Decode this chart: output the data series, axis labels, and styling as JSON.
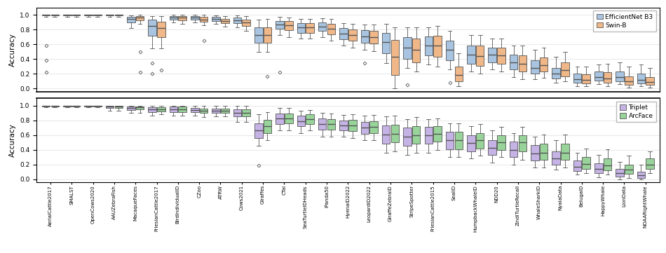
{
  "datasets": [
    "AerialCattle2017",
    "SMALST",
    "OpenCows2020",
    "AAUZebraFish",
    "MacaqueFaces",
    "FriesianCattle2017",
    "BirdIndividualID",
    "CZoo",
    "ATRW",
    "Cows2021",
    "Giraffes",
    "CTai",
    "SeaTurtleIDHeads",
    "IPanda50",
    "HyenaID2022",
    "LeopardID2022",
    "GiraffeZebraID",
    "StripeSpotter",
    "FriesianCattle2015",
    "SealID",
    "HumpbackWhaleID",
    "NDD20",
    "ZindiTurtleRecall",
    "WhaleSharkID",
    "NyalaData",
    "BelugaID",
    "HappyWhale",
    "LionData",
    "NOAARightWhale"
  ],
  "color_effnet": "#a8c4e0",
  "color_swin": "#f0b889",
  "color_triplet": "#c5b3e6",
  "color_arcface": "#98d49a",
  "top_boxes": {
    "effnet": [
      [
        0.975,
        0.99,
        1.0,
        1.0,
        1.0
      ],
      [
        0.975,
        0.99,
        1.0,
        1.0,
        1.0
      ],
      [
        0.975,
        0.99,
        1.0,
        1.0,
        1.0
      ],
      [
        0.975,
        0.99,
        1.0,
        1.0,
        1.0
      ],
      [
        0.82,
        0.9,
        0.95,
        0.975,
        0.99
      ],
      [
        0.55,
        0.72,
        0.85,
        0.94,
        0.985
      ],
      [
        0.9,
        0.94,
        0.965,
        0.985,
        1.0
      ],
      [
        0.9,
        0.94,
        0.965,
        0.985,
        1.0
      ],
      [
        0.88,
        0.92,
        0.95,
        0.975,
        0.99
      ],
      [
        0.83,
        0.89,
        0.93,
        0.965,
        0.99
      ],
      [
        0.5,
        0.62,
        0.73,
        0.83,
        0.94
      ],
      [
        0.73,
        0.81,
        0.87,
        0.92,
        0.97
      ],
      [
        0.68,
        0.76,
        0.83,
        0.89,
        0.95
      ],
      [
        0.7,
        0.78,
        0.84,
        0.9,
        0.955
      ],
      [
        0.58,
        0.67,
        0.75,
        0.82,
        0.89
      ],
      [
        0.53,
        0.62,
        0.71,
        0.79,
        0.87
      ],
      [
        0.35,
        0.48,
        0.63,
        0.76,
        0.88
      ],
      [
        0.28,
        0.4,
        0.56,
        0.7,
        0.83
      ],
      [
        0.33,
        0.45,
        0.58,
        0.71,
        0.83
      ],
      [
        0.26,
        0.38,
        0.53,
        0.65,
        0.78
      ],
      [
        0.23,
        0.34,
        0.46,
        0.58,
        0.73
      ],
      [
        0.26,
        0.36,
        0.46,
        0.56,
        0.68
      ],
      [
        0.16,
        0.26,
        0.36,
        0.46,
        0.58
      ],
      [
        0.13,
        0.2,
        0.28,
        0.38,
        0.53
      ],
      [
        0.08,
        0.14,
        0.2,
        0.28,
        0.43
      ],
      [
        0.03,
        0.08,
        0.13,
        0.2,
        0.3
      ],
      [
        0.06,
        0.11,
        0.16,
        0.23,
        0.33
      ],
      [
        0.06,
        0.1,
        0.16,
        0.23,
        0.36
      ],
      [
        0.03,
        0.07,
        0.12,
        0.2,
        0.33
      ]
    ],
    "swin": [
      [
        0.975,
        0.99,
        1.0,
        1.0,
        1.0
      ],
      [
        0.975,
        0.99,
        1.0,
        1.0,
        1.0
      ],
      [
        0.975,
        0.99,
        1.0,
        1.0,
        1.0
      ],
      [
        0.975,
        0.99,
        1.0,
        1.0,
        1.0
      ],
      [
        0.88,
        0.93,
        0.965,
        0.985,
        1.0
      ],
      [
        0.55,
        0.7,
        0.82,
        0.91,
        0.98
      ],
      [
        0.88,
        0.93,
        0.965,
        0.985,
        1.0
      ],
      [
        0.86,
        0.91,
        0.94,
        0.97,
        1.0
      ],
      [
        0.84,
        0.89,
        0.92,
        0.95,
        0.985
      ],
      [
        0.78,
        0.85,
        0.9,
        0.94,
        0.985
      ],
      [
        0.5,
        0.62,
        0.73,
        0.83,
        0.95
      ],
      [
        0.7,
        0.79,
        0.86,
        0.92,
        0.965
      ],
      [
        0.68,
        0.76,
        0.83,
        0.89,
        0.95
      ],
      [
        0.65,
        0.74,
        0.81,
        0.88,
        0.945
      ],
      [
        0.56,
        0.65,
        0.73,
        0.8,
        0.88
      ],
      [
        0.51,
        0.61,
        0.7,
        0.78,
        0.87
      ],
      [
        0.0,
        0.18,
        0.43,
        0.66,
        0.83
      ],
      [
        0.23,
        0.36,
        0.53,
        0.68,
        0.83
      ],
      [
        0.3,
        0.43,
        0.58,
        0.72,
        0.85
      ],
      [
        0.03,
        0.1,
        0.18,
        0.3,
        0.48
      ],
      [
        0.2,
        0.31,
        0.44,
        0.58,
        0.73
      ],
      [
        0.23,
        0.34,
        0.45,
        0.56,
        0.68
      ],
      [
        0.13,
        0.23,
        0.34,
        0.45,
        0.58
      ],
      [
        0.15,
        0.23,
        0.32,
        0.42,
        0.56
      ],
      [
        0.1,
        0.17,
        0.25,
        0.36,
        0.5
      ],
      [
        0.03,
        0.07,
        0.12,
        0.19,
        0.3
      ],
      [
        0.03,
        0.08,
        0.14,
        0.22,
        0.34
      ],
      [
        0.01,
        0.05,
        0.1,
        0.17,
        0.3
      ],
      [
        0.01,
        0.05,
        0.09,
        0.16,
        0.28
      ]
    ]
  },
  "bottom_boxes": {
    "triplet": [
      [
        0.975,
        0.99,
        1.0,
        1.0,
        1.0
      ],
      [
        0.975,
        0.99,
        1.0,
        1.0,
        1.0
      ],
      [
        0.975,
        0.99,
        1.0,
        1.0,
        1.0
      ],
      [
        0.93,
        0.97,
        0.99,
        1.0,
        1.0
      ],
      [
        0.9,
        0.94,
        0.965,
        0.985,
        1.0
      ],
      [
        0.86,
        0.91,
        0.95,
        0.975,
        1.0
      ],
      [
        0.86,
        0.91,
        0.95,
        0.985,
        1.0
      ],
      [
        0.86,
        0.91,
        0.94,
        0.97,
        1.0
      ],
      [
        0.85,
        0.9,
        0.93,
        0.96,
        1.0
      ],
      [
        0.78,
        0.85,
        0.9,
        0.95,
        1.0
      ],
      [
        0.45,
        0.56,
        0.66,
        0.76,
        0.88
      ],
      [
        0.66,
        0.75,
        0.83,
        0.89,
        0.965
      ],
      [
        0.63,
        0.72,
        0.79,
        0.86,
        0.93
      ],
      [
        0.58,
        0.67,
        0.75,
        0.83,
        0.9
      ],
      [
        0.58,
        0.66,
        0.73,
        0.8,
        0.87
      ],
      [
        0.53,
        0.62,
        0.7,
        0.78,
        0.86
      ],
      [
        0.36,
        0.48,
        0.61,
        0.73,
        0.85
      ],
      [
        0.33,
        0.45,
        0.58,
        0.7,
        0.82
      ],
      [
        0.36,
        0.48,
        0.6,
        0.71,
        0.82
      ],
      [
        0.3,
        0.41,
        0.53,
        0.64,
        0.76
      ],
      [
        0.28,
        0.38,
        0.49,
        0.6,
        0.72
      ],
      [
        0.23,
        0.33,
        0.43,
        0.53,
        0.66
      ],
      [
        0.2,
        0.3,
        0.4,
        0.51,
        0.63
      ],
      [
        0.16,
        0.25,
        0.35,
        0.46,
        0.58
      ],
      [
        0.13,
        0.2,
        0.28,
        0.38,
        0.53
      ],
      [
        0.06,
        0.11,
        0.17,
        0.25,
        0.36
      ],
      [
        0.03,
        0.08,
        0.14,
        0.22,
        0.33
      ],
      [
        0.0,
        0.04,
        0.08,
        0.14,
        0.24
      ],
      [
        0.0,
        0.02,
        0.05,
        0.1,
        0.2
      ]
    ],
    "arcface": [
      [
        0.975,
        0.99,
        1.0,
        1.0,
        1.0
      ],
      [
        0.975,
        0.99,
        1.0,
        1.0,
        1.0
      ],
      [
        0.975,
        0.99,
        1.0,
        1.0,
        1.0
      ],
      [
        0.93,
        0.97,
        0.99,
        1.0,
        1.0
      ],
      [
        0.9,
        0.95,
        0.975,
        0.985,
        1.0
      ],
      [
        0.88,
        0.92,
        0.95,
        0.975,
        1.0
      ],
      [
        0.86,
        0.91,
        0.95,
        0.985,
        1.0
      ],
      [
        0.84,
        0.9,
        0.93,
        0.96,
        1.0
      ],
      [
        0.85,
        0.9,
        0.93,
        0.96,
        1.0
      ],
      [
        0.78,
        0.85,
        0.9,
        0.95,
        1.0
      ],
      [
        0.53,
        0.63,
        0.72,
        0.81,
        0.91
      ],
      [
        0.66,
        0.76,
        0.83,
        0.89,
        0.965
      ],
      [
        0.66,
        0.75,
        0.82,
        0.88,
        0.94
      ],
      [
        0.58,
        0.67,
        0.75,
        0.82,
        0.89
      ],
      [
        0.56,
        0.65,
        0.73,
        0.81,
        0.88
      ],
      [
        0.53,
        0.63,
        0.71,
        0.79,
        0.87
      ],
      [
        0.38,
        0.5,
        0.62,
        0.74,
        0.86
      ],
      [
        0.36,
        0.48,
        0.6,
        0.72,
        0.84
      ],
      [
        0.4,
        0.51,
        0.62,
        0.72,
        0.83
      ],
      [
        0.3,
        0.41,
        0.53,
        0.64,
        0.76
      ],
      [
        0.32,
        0.42,
        0.53,
        0.63,
        0.75
      ],
      [
        0.3,
        0.4,
        0.5,
        0.6,
        0.71
      ],
      [
        0.26,
        0.38,
        0.5,
        0.6,
        0.71
      ],
      [
        0.16,
        0.26,
        0.36,
        0.48,
        0.61
      ],
      [
        0.16,
        0.26,
        0.36,
        0.48,
        0.61
      ],
      [
        0.08,
        0.14,
        0.21,
        0.3,
        0.42
      ],
      [
        0.06,
        0.12,
        0.19,
        0.28,
        0.41
      ],
      [
        0.02,
        0.07,
        0.13,
        0.2,
        0.32
      ],
      [
        0.08,
        0.14,
        0.2,
        0.28,
        0.38
      ]
    ]
  },
  "top_outliers_effnet": [
    [
      0.38,
      0.22,
      0.58
    ],
    [],
    [],
    [],
    [],
    [
      0.35,
      0.2
    ],
    [],
    [],
    [],
    [],
    [],
    [
      0.22
    ],
    [],
    [],
    [],
    [
      0.35
    ],
    [],
    [
      0.05
    ],
    [],
    [
      0.08
    ],
    [],
    [],
    [],
    [],
    [],
    [],
    [],
    [],
    []
  ],
  "top_outliers_swin": [
    [],
    [],
    [],
    [],
    [
      0.5,
      0.22
    ],
    [
      0.25
    ],
    [],
    [
      0.65
    ],
    [],
    [],
    [
      0.17
    ],
    [],
    [],
    [],
    [],
    [],
    [],
    [],
    [],
    [],
    [],
    [],
    [],
    [],
    [],
    [],
    [],
    [],
    []
  ],
  "bottom_outliers_triplet": [
    [],
    [],
    [],
    [],
    [],
    [],
    [],
    [],
    [],
    [],
    [
      0.19
    ],
    [],
    [],
    [],
    [],
    [],
    [],
    [],
    [],
    [],
    [],
    [],
    [],
    [],
    [],
    [],
    [],
    [],
    []
  ],
  "bottom_outliers_arcface": [
    [],
    [],
    [],
    [],
    [],
    [],
    [],
    [],
    [],
    [],
    [],
    [],
    [],
    [],
    [],
    [],
    [],
    [],
    [],
    [],
    [],
    [],
    [],
    [],
    [],
    [],
    [],
    [],
    []
  ]
}
